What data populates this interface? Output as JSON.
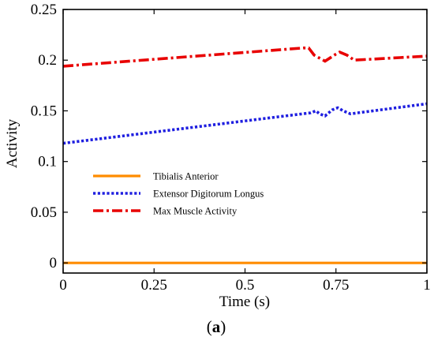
{
  "chart_data": {
    "type": "line",
    "title": "",
    "xlabel": "Time (s)",
    "ylabel": "Activity",
    "xlim": [
      0,
      1
    ],
    "ylim": [
      -0.01,
      0.25
    ],
    "xticks": [
      "0",
      "0.25",
      "0.5",
      "0.75",
      "1"
    ],
    "yticks": [
      "0",
      "0.05",
      "0.1",
      "0.15",
      "0.2",
      "0.25"
    ],
    "grid": false,
    "legend_position": "left",
    "series": [
      {
        "name": "Tibialis Anterior",
        "color": "#FF8C00",
        "style": "solid",
        "points": [
          [
            0,
            0.0
          ],
          [
            1,
            0.0
          ]
        ]
      },
      {
        "name": "Extensor Digitorum Longus",
        "color": "#1F1FE0",
        "style": "dotted",
        "points": [
          [
            0,
            0.118
          ],
          [
            0.68,
            0.148
          ],
          [
            0.695,
            0.15
          ],
          [
            0.705,
            0.147
          ],
          [
            0.72,
            0.145
          ],
          [
            0.74,
            0.151
          ],
          [
            0.755,
            0.153
          ],
          [
            0.77,
            0.15
          ],
          [
            0.79,
            0.147
          ],
          [
            0.81,
            0.148
          ],
          [
            1.0,
            0.157
          ]
        ]
      },
      {
        "name": "Max Muscle Activity",
        "color": "#E80000",
        "style": "dashdot",
        "points": [
          [
            0,
            0.194
          ],
          [
            0.66,
            0.212
          ],
          [
            0.675,
            0.212
          ],
          [
            0.69,
            0.205
          ],
          [
            0.72,
            0.199
          ],
          [
            0.75,
            0.206
          ],
          [
            0.76,
            0.208
          ],
          [
            0.78,
            0.205
          ],
          [
            0.8,
            0.2
          ],
          [
            1.0,
            0.204
          ]
        ]
      }
    ]
  },
  "panel_label": {
    "open": "(",
    "letter": "a",
    "close": ")"
  }
}
